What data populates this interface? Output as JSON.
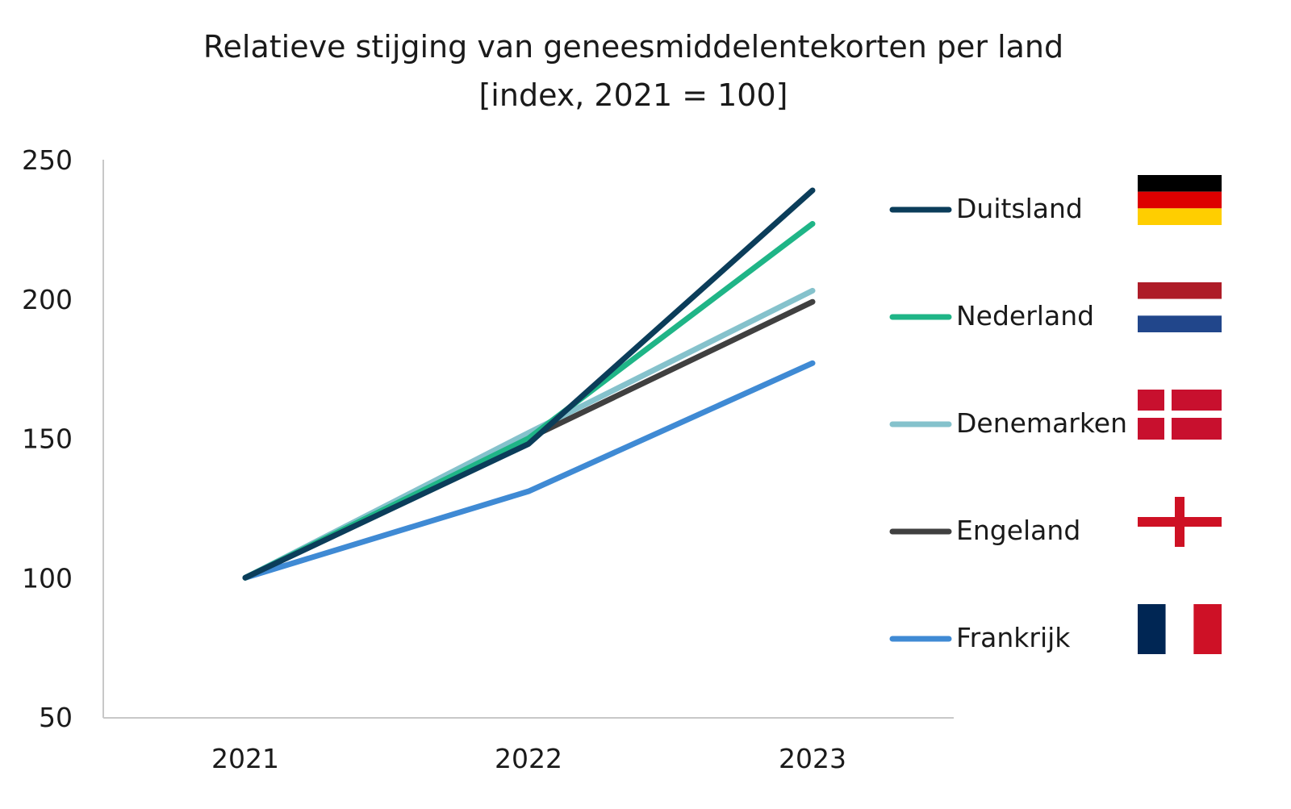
{
  "chart_data": {
    "type": "line",
    "title": "Relatieve stijging van geneesmiddelentekorten per land",
    "subtitle": "[index, 2021 = 100]",
    "xlabel": "",
    "ylabel": "",
    "categories": [
      "2021",
      "2022",
      "2023"
    ],
    "ylim": [
      50,
      250
    ],
    "yticks": [
      50,
      100,
      150,
      200,
      250
    ],
    "grid": false,
    "legend_position": "right",
    "series": [
      {
        "name": "Duitsland",
        "color": "#0b3d5a",
        "flag": "germany-flag",
        "values": [
          100,
          148,
          239
        ]
      },
      {
        "name": "Nederland",
        "color": "#1fb587",
        "flag": "netherlands-flag",
        "values": [
          100,
          150,
          227
        ]
      },
      {
        "name": "Denemarken",
        "color": "#85c2cc",
        "flag": "denmark-flag",
        "values": [
          100,
          152,
          203
        ]
      },
      {
        "name": "Engeland",
        "color": "#404040",
        "flag": "england-flag",
        "values": [
          100,
          150,
          199
        ]
      },
      {
        "name": "Frankrijk",
        "color": "#3f8ad4",
        "flag": "france-flag",
        "values": [
          100,
          131,
          177
        ]
      }
    ]
  }
}
